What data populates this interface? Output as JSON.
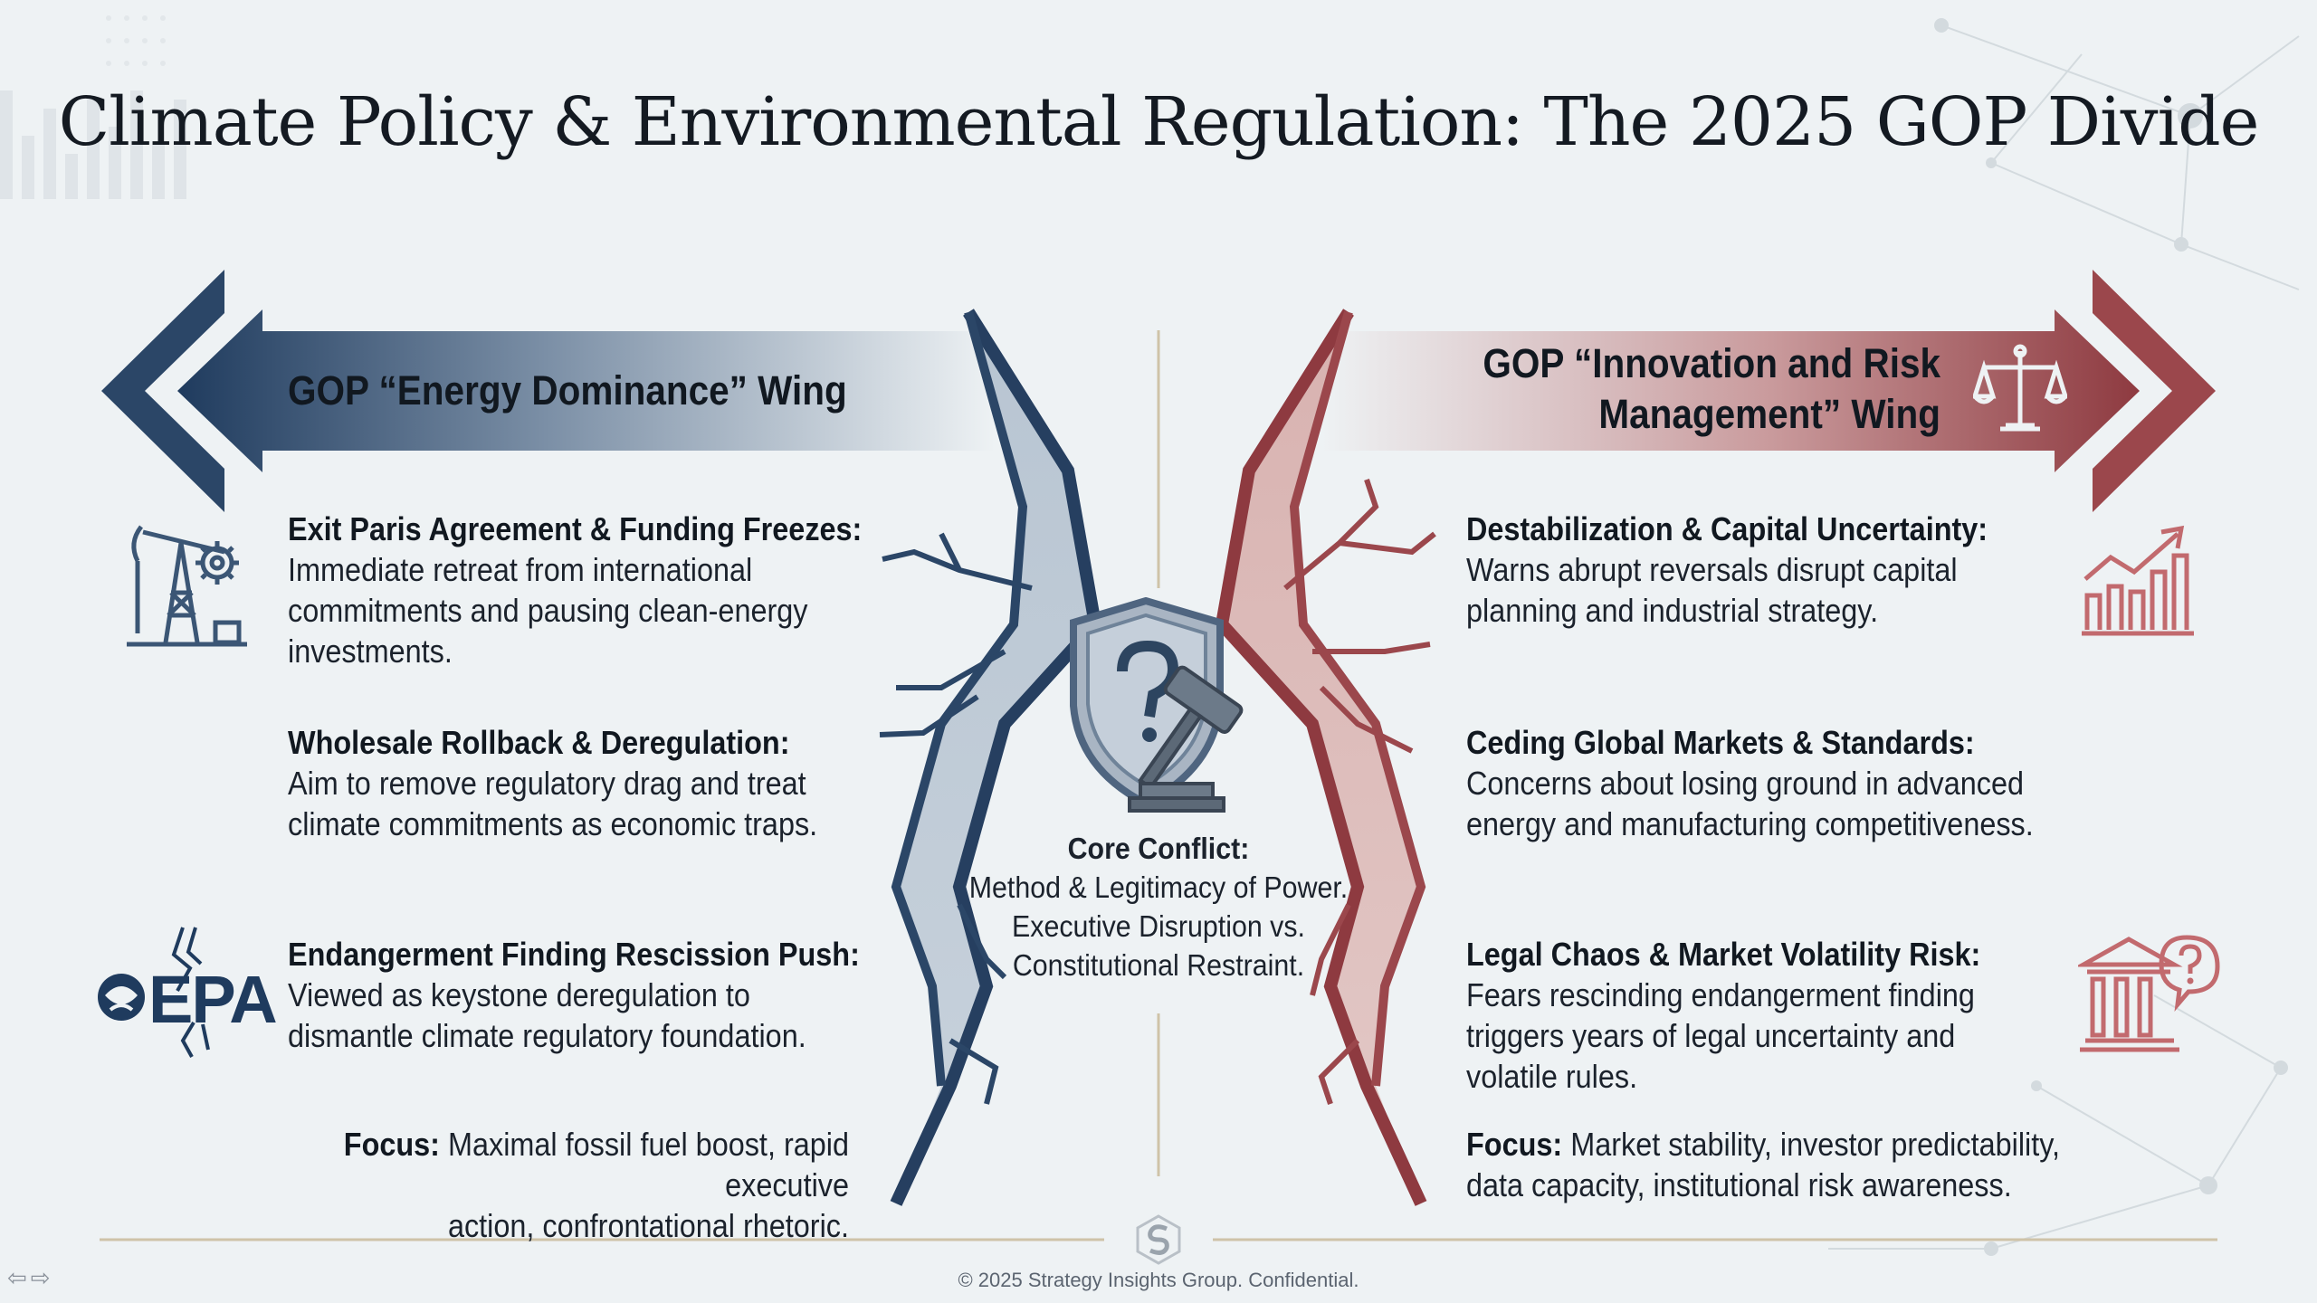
{
  "title": "Climate Policy & Environmental Regulation: The 2025 GOP Divide",
  "left_wing": {
    "title_line1": "GOP “Energy Dominance” Wing",
    "color": "#2e4a6c",
    "items": [
      {
        "heading": "Exit Paris Agreement & Funding Freezes:",
        "body": [
          "Immediate retreat from international",
          "commitments and pausing clean-energy",
          "investments."
        ],
        "icon": "oil-pump-gear-icon"
      },
      {
        "heading": "Wholesale Rollback & Deregulation:",
        "body": [
          "Aim to remove regulatory drag and treat",
          "climate commitments as economic traps."
        ],
        "icon": ""
      },
      {
        "heading": "Endangerment Finding Rescission Push:",
        "body": [
          "Viewed as keystone deregulation to",
          "dismantle climate regulatory foundation."
        ],
        "icon": "epa-logo-icon",
        "icon_text": "EPA"
      }
    ],
    "focus_label": "Focus:",
    "focus_line1": "Maximal fossil fuel boost, rapid executive",
    "focus_line2": "action, confrontational rhetoric."
  },
  "right_wing": {
    "title_line1": "GOP “Innovation and Risk",
    "title_line2": "Management” Wing",
    "color": "#9c4a4e",
    "items": [
      {
        "heading": "Destabilization & Capital Uncertainty:",
        "body": [
          "Warns abrupt reversals disrupt capital",
          "planning and industrial strategy."
        ],
        "icon": "rising-chart-icon"
      },
      {
        "heading": "Ceding Global Markets & Standards:",
        "body": [
          "Concerns about losing ground in advanced",
          "energy and manufacturing competitiveness."
        ],
        "icon": ""
      },
      {
        "heading": "Legal Chaos & Market Volatility Risk:",
        "body": [
          "Fears rescinding endangerment finding",
          "triggers years of legal uncertainty and",
          "volatile rules."
        ],
        "icon": "institution-question-icon"
      }
    ],
    "focus_label": "Focus:",
    "focus_line1": "Market stability, investor predictability,",
    "focus_line2": "data capacity, institutional risk awareness."
  },
  "core": {
    "heading": "Core Conflict:",
    "lines": [
      "Method & Legitimacy of Power.",
      "Executive Disruption vs.",
      "Constitutional Restraint."
    ],
    "icon": "shield-question-gavel-icon"
  },
  "footer": "© 2025 Strategy Insights Group. Confidential.",
  "nav": {
    "prev": "⇦",
    "next": "⇨"
  }
}
